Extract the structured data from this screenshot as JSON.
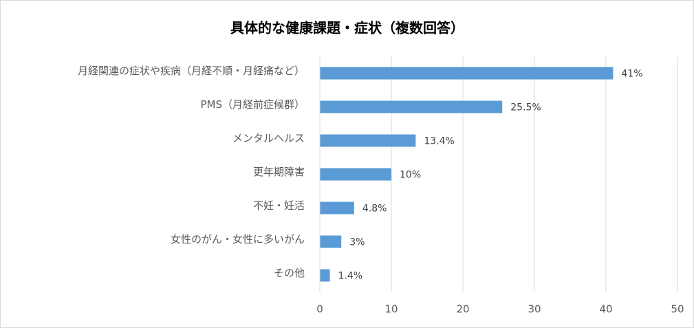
{
  "chart_data": {
    "type": "bar",
    "orientation": "horizontal",
    "title": "具体的な健康課題・症状（複数回答）",
    "categories": [
      "月経関連の症状や疾病（月経不順・月経痛など）",
      "PMS（月経前症候群）",
      "メンタルヘルス",
      "更年期障害",
      "不妊・妊活",
      "女性のがん・女性に多いがん",
      "その他"
    ],
    "values": [
      41,
      25.5,
      13.4,
      10,
      4.8,
      3,
      1.4
    ],
    "value_labels": [
      "41%",
      "25.5%",
      "13.4%",
      "10%",
      "4.8%",
      "3%",
      "1.4%"
    ],
    "color": "#5b9bd5",
    "xlim": [
      0,
      50
    ],
    "xticks": [
      0,
      10,
      20,
      30,
      40,
      50
    ],
    "grid": true
  }
}
